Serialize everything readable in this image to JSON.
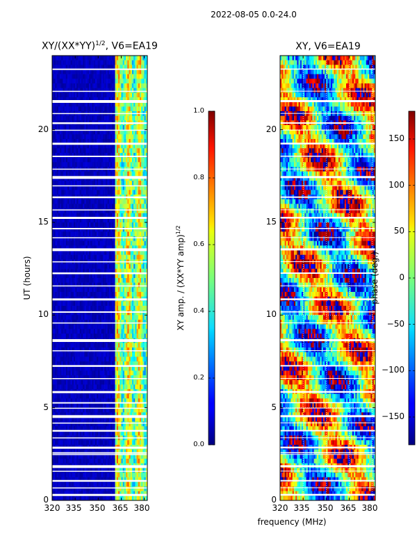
{
  "figure": {
    "suptitle": "2022-08-05 0.0-24.0",
    "xlabel": "frequency (MHz)"
  },
  "chart_data": [
    {
      "type": "heatmap",
      "title": "XY/(XX*YY)^{1/2}, V6=EA19",
      "title_main": "XY/(XX*YY)",
      "title_sup": "1/2",
      "title_tail": ", V6=EA19",
      "xlabel": "frequency (MHz)",
      "ylabel": "UT (hours)",
      "xlim": [
        320,
        382
      ],
      "ylim": [
        0,
        24
      ],
      "xticks": [
        320,
        335,
        350,
        365,
        380
      ],
      "yticks": [
        0,
        5,
        10,
        15,
        20
      ],
      "xtick_labels": [
        "320",
        "335",
        "350",
        "365",
        "380"
      ],
      "ytick_labels": [
        "0",
        "5",
        "10",
        "15",
        "20"
      ],
      "colormap": "jet",
      "colorbar": {
        "label": "XY amp. / (XX*YY amp)^{1/2}",
        "label_main": "XY amp. / (XX*YY amp)",
        "label_sup": "1/2",
        "range": [
          0.0,
          1.0
        ],
        "ticks": [
          0.0,
          0.2,
          0.4,
          0.6,
          0.8,
          1.0
        ],
        "tick_labels": [
          "0.0",
          "0.2",
          "0.4",
          "0.6",
          "0.8",
          "1.0"
        ]
      },
      "description": "Low amplitude (~0.0-0.1) below 361 MHz; patchy higher amplitude (0.3-0.7) between 361 and 382 MHz; many horizontal white flagged rows"
    },
    {
      "type": "heatmap",
      "title": "XY, V6=EA19",
      "xlabel": "frequency (MHz)",
      "ylabel": "",
      "xlim": [
        320,
        382
      ],
      "ylim": [
        0,
        24
      ],
      "xticks": [
        320,
        335,
        350,
        365,
        380
      ],
      "yticks": [
        0,
        5,
        10,
        15,
        20
      ],
      "xtick_labels": [
        "320",
        "335",
        "350",
        "365",
        "380"
      ],
      "ytick_labels": [
        "0",
        "5",
        "10",
        "15",
        "20"
      ],
      "colormap": "jet",
      "colorbar": {
        "label": "phase (deg.)",
        "range": [
          -180,
          180
        ],
        "ticks": [
          -150,
          -100,
          -50,
          0,
          50,
          100,
          150
        ],
        "tick_labels": [
          "−150",
          "−100",
          "−50",
          "0",
          "50",
          "100",
          "150"
        ]
      },
      "description": "Noisy phase with red/orange regions (~100-180 deg) and cyan/blue regions (-50 to -150 deg); many horizontal flagged rows"
    }
  ],
  "colors": {
    "flag": "#ffffff",
    "axis": "#000000"
  }
}
